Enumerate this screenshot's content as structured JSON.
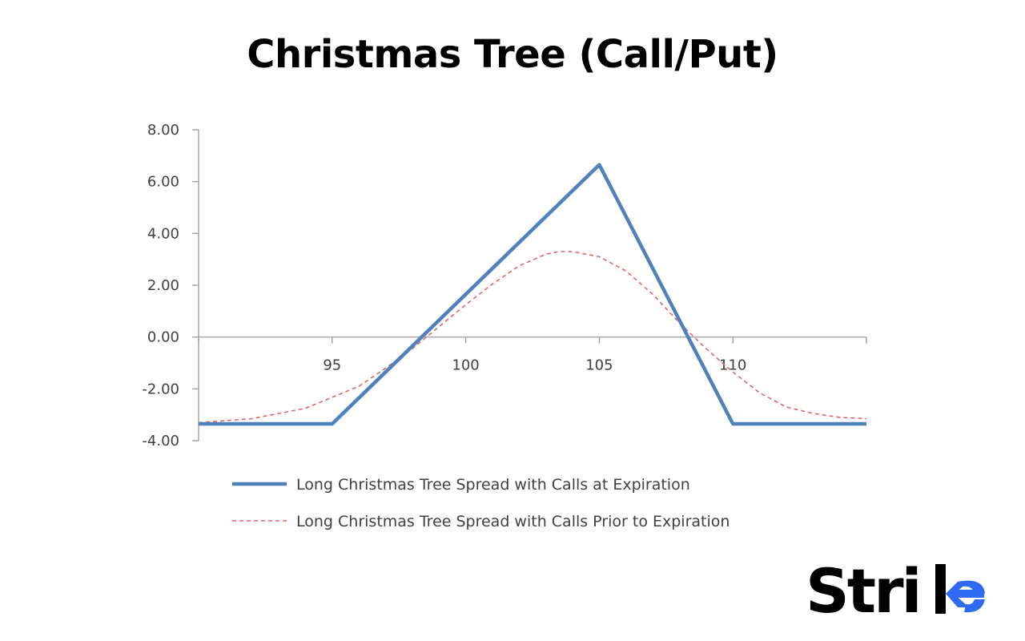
{
  "title": "Christmas Tree (Call/Put)",
  "brand": {
    "name": "Strike",
    "visible_letters": "Stri",
    "accent_color": "#2f6bf2"
  },
  "chart_data": {
    "type": "line",
    "xlim": [
      90,
      115
    ],
    "ylim": [
      -4,
      8
    ],
    "x_ticks": [
      95,
      100,
      105,
      110
    ],
    "x_tick_labels": [
      "95",
      "100",
      "105",
      "110"
    ],
    "y_ticks": [
      -4,
      -2,
      0,
      2,
      4,
      6,
      8
    ],
    "y_tick_labels": [
      "-4.00",
      "-2.00",
      "0.00",
      "2.00",
      "4.00",
      "6.00",
      "8.00"
    ],
    "grid": false,
    "legend_position": "bottom",
    "series": [
      {
        "name": "Long Christmas Tree Spread with Calls at Expiration",
        "color": "#4f81bd",
        "style": "solid",
        "x": [
          90,
          95,
          105,
          110,
          115
        ],
        "y": [
          -3.35,
          -3.35,
          6.65,
          -3.35,
          -3.35
        ]
      },
      {
        "name": "Long Christmas Tree Spread with Calls Prior to Expiration",
        "color": "#e06666",
        "style": "dashed",
        "x": [
          90,
          92,
          94,
          96,
          97,
          98,
          99,
          100,
          101,
          102,
          103,
          103.5,
          104,
          105,
          106,
          107,
          108,
          109,
          110,
          111,
          112,
          113,
          114,
          115
        ],
        "y": [
          -3.3,
          -3.15,
          -2.75,
          -1.9,
          -1.2,
          -0.45,
          0.4,
          1.25,
          2.05,
          2.75,
          3.2,
          3.3,
          3.3,
          3.1,
          2.55,
          1.65,
          0.55,
          -0.45,
          -1.35,
          -2.15,
          -2.7,
          -2.95,
          -3.1,
          -3.15
        ]
      }
    ]
  }
}
